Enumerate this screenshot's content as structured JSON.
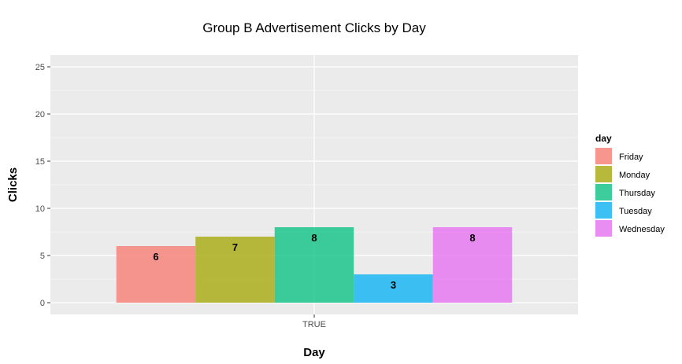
{
  "chart_data": {
    "type": "bar",
    "title": "Group B Advertisement Clicks by Day",
    "xlabel": "Day",
    "ylabel": "Clicks",
    "categories": [
      "TRUE"
    ],
    "series": [
      {
        "name": "Friday",
        "values": [
          6
        ],
        "color": "#F8766D"
      },
      {
        "name": "Monday",
        "values": [
          7
        ],
        "color": "#A3A500"
      },
      {
        "name": "Thursday",
        "values": [
          8
        ],
        "color": "#00BF7D"
      },
      {
        "name": "Tuesday",
        "values": [
          3
        ],
        "color": "#00B0F6"
      },
      {
        "name": "Wednesday",
        "values": [
          8
        ],
        "color": "#E76BF3"
      }
    ],
    "ylim": [
      -1.25,
      26.25
    ],
    "yticks": [
      0,
      5,
      10,
      15,
      20,
      25
    ],
    "ytick_labels": [
      "0",
      "5",
      "10",
      "15",
      "20",
      "25"
    ],
    "grid": true,
    "panel_background": "#EBEBEB",
    "legend": {
      "title": "day",
      "position": "right"
    }
  }
}
